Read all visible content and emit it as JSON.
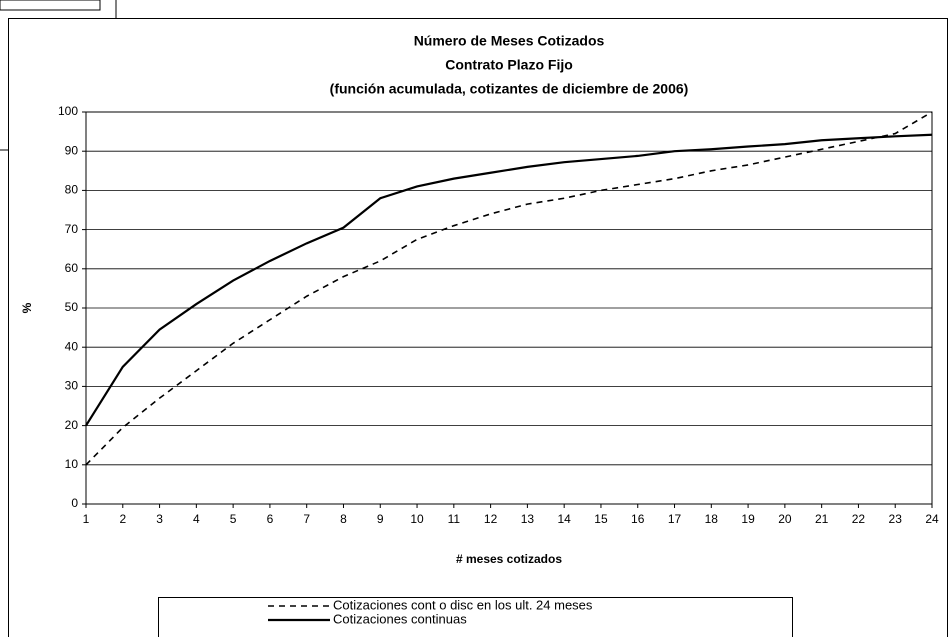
{
  "chart_data": {
    "type": "line",
    "title": [
      "Número de Meses Cotizados",
      "Contrato Plazo Fijo",
      "(función acumulada, cotizantes de diciembre de 2006)"
    ],
    "xlabel": "# meses cotizados",
    "ylabel": "%",
    "x": [
      1,
      2,
      3,
      4,
      5,
      6,
      7,
      8,
      9,
      10,
      11,
      12,
      13,
      14,
      15,
      16,
      17,
      18,
      19,
      20,
      21,
      22,
      23,
      24
    ],
    "series": [
      {
        "name": "Cotizaciones cont o disc en los ult. 24 meses",
        "color": "#000000",
        "dashed": true,
        "values": [
          10,
          19.5,
          27,
          34,
          41,
          47,
          53,
          58,
          62,
          67.5,
          71,
          74,
          76.5,
          78,
          80,
          81.5,
          83,
          85,
          86.5,
          88.5,
          90.5,
          92.5,
          94.5,
          100
        ]
      },
      {
        "name": "Cotizaciones continuas",
        "color": "#000000",
        "dashed": false,
        "values": [
          20,
          35,
          44.5,
          51,
          57,
          62,
          66.5,
          70.5,
          78,
          81,
          83,
          84.5,
          86,
          87.2,
          88,
          88.8,
          90,
          90.5,
          91.2,
          91.8,
          92.8,
          93.3,
          93.8,
          94.2
        ]
      }
    ],
    "xlim": [
      1,
      24
    ],
    "xticks": [
      1,
      2,
      3,
      4,
      5,
      6,
      7,
      8,
      9,
      10,
      11,
      12,
      13,
      14,
      15,
      16,
      17,
      18,
      19,
      20,
      21,
      22,
      23,
      24
    ],
    "ylim": [
      0,
      100
    ],
    "yticks": [
      0,
      10,
      20,
      30,
      40,
      50,
      60,
      70,
      80,
      90,
      100
    ],
    "grid": true,
    "legend": "bottom"
  }
}
